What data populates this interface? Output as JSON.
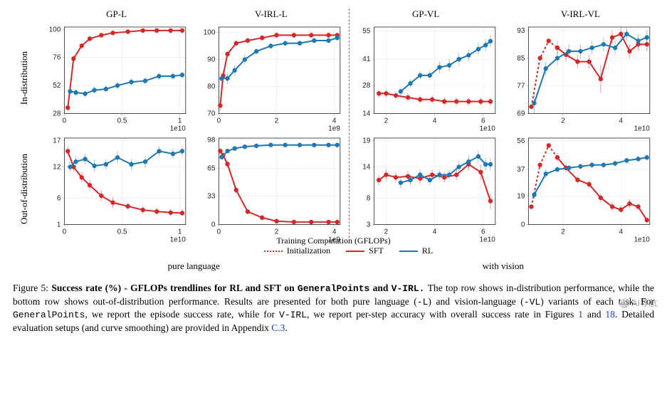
{
  "figure": {
    "number_label": "Figure 5:",
    "title_bold": "Success rate (%) - GFLOPs trendlines for RL and SFT on ",
    "title_mono1": "GeneralPoints",
    "title_mid": " and ",
    "title_mono2": "V-IRL.",
    "body_1": " The top row shows in-distribution performance, while the bottom row shows out-of-distribution performance. Results are presented for both pure language (",
    "mono_L": "-L",
    "body_2": ") and vision-language (",
    "mono_VL": "-VL",
    "body_3": ") variants of each task. For ",
    "mono_GP": "GeneralPoints",
    "body_4": ", we report the episode success rate, while for ",
    "mono_VIRL": "V-IRL",
    "body_5": ", we report per-step accuracy with overall success rate in Figures ",
    "link_1": "1",
    "body_6": " and ",
    "link_18": "18",
    "body_7": ". Detailed evaluation setups (and curve smoothing) are provided in Appendix ",
    "link_C3": "C.3",
    "body_8": "."
  },
  "layout": {
    "row_labels": [
      "In-distribution",
      "Out-of-distribution"
    ],
    "col_titles": [
      "GP-L",
      "V-IRL-L",
      "GP-VL",
      "V-IRL-VL"
    ],
    "bottom_left": "pure language",
    "bottom_right": "with vision",
    "xaxis_title": "Training Computation (GFLOPs)",
    "legend": [
      {
        "label": "Initialization",
        "color": "#d62728",
        "style": "dotted"
      },
      {
        "label": "SFT",
        "color": "#d62728",
        "style": "solid"
      },
      {
        "label": "RL",
        "color": "#1f77b4",
        "style": "solid"
      }
    ]
  },
  "style": {
    "sft_color": "#d62728",
    "rl_color": "#1f77b4",
    "init_color": "#d62728",
    "grid_color": "#e8e8e8",
    "frame_color": "#222222",
    "tick_font_size": 10,
    "line_width": 2,
    "marker_radius": 3.2,
    "background": "#ffffff"
  },
  "panels": [
    {
      "id": "gp-l-in",
      "title": "GP-L",
      "xlim": [
        0.0,
        1.05
      ],
      "xexp": "1e10",
      "xticks": [
        0.0,
        0.5,
        1.0
      ],
      "ylim": [
        28,
        102
      ],
      "yticks": [
        28,
        52,
        76,
        100
      ],
      "sft": {
        "color": "#d62728",
        "x": [
          0.03,
          0.08,
          0.15,
          0.22,
          0.32,
          0.42,
          0.55,
          0.68,
          0.8,
          0.92,
          1.02
        ],
        "y": [
          33,
          75,
          86,
          92,
          95,
          97,
          98,
          99,
          99,
          99,
          99
        ],
        "err": [
          3,
          3,
          2,
          2,
          1,
          1,
          1,
          1,
          1,
          1,
          1
        ]
      },
      "rl": {
        "color": "#1f77b4",
        "x": [
          0.05,
          0.1,
          0.18,
          0.26,
          0.36,
          0.46,
          0.58,
          0.7,
          0.82,
          0.94,
          1.02
        ],
        "y": [
          47,
          46,
          45,
          48,
          49,
          52,
          55,
          56,
          60,
          60,
          61
        ],
        "err": [
          3,
          3,
          3,
          3,
          3,
          3,
          3,
          3,
          3,
          3,
          3
        ]
      }
    },
    {
      "id": "virl-l-in",
      "title": "V-IRL-L",
      "xlim": [
        0.0,
        4.2
      ],
      "xexp": "1e9",
      "xticks": [
        0,
        2,
        4
      ],
      "ylim": [
        70,
        102
      ],
      "yticks": [
        70,
        80,
        90,
        100
      ],
      "sft": {
        "color": "#d62728",
        "x": [
          0.05,
          0.15,
          0.3,
          0.6,
          1.0,
          1.5,
          2.0,
          2.6,
          3.2,
          3.8,
          4.1
        ],
        "y": [
          73,
          84,
          92,
          96,
          97,
          98,
          99,
          99,
          99,
          99,
          99
        ],
        "err": [
          2,
          2,
          1,
          1,
          1,
          1,
          1,
          1,
          1,
          1,
          1
        ]
      },
      "rl": {
        "color": "#1f77b4",
        "x": [
          0.1,
          0.3,
          0.55,
          0.9,
          1.3,
          1.8,
          2.3,
          2.8,
          3.3,
          3.8,
          4.1
        ],
        "y": [
          83,
          83,
          86,
          90,
          93,
          95,
          96,
          96,
          97,
          97,
          98
        ],
        "err": [
          2,
          2,
          2,
          2,
          1,
          1,
          1,
          1,
          1,
          1,
          1
        ]
      }
    },
    {
      "id": "gp-vl-in",
      "title": "GP-VL",
      "xlim": [
        1.5,
        6.5
      ],
      "xexp": "1e10",
      "xticks": [
        2,
        4,
        6
      ],
      "ylim": [
        14,
        57
      ],
      "yticks": [
        14,
        28,
        41,
        55
      ],
      "sft": {
        "color": "#d62728",
        "x": [
          1.7,
          2.0,
          2.4,
          2.9,
          3.4,
          3.9,
          4.4,
          4.9,
          5.4,
          5.9,
          6.3
        ],
        "y": [
          24,
          24,
          23,
          22,
          21,
          21,
          20,
          20,
          20,
          20,
          20
        ],
        "err": [
          2,
          2,
          2,
          2,
          2,
          2,
          2,
          2,
          2,
          2,
          2
        ]
      },
      "rl": {
        "color": "#1f77b4",
        "x": [
          2.6,
          3.0,
          3.4,
          3.8,
          4.2,
          4.6,
          5.0,
          5.4,
          5.8,
          6.1,
          6.3
        ],
        "y": [
          25,
          29,
          33,
          33,
          37,
          38,
          41,
          43,
          46,
          48,
          50
        ],
        "err": [
          2,
          2,
          2,
          2,
          3,
          3,
          3,
          3,
          3,
          3,
          3
        ]
      }
    },
    {
      "id": "virl-vl-in",
      "title": "V-IRL-VL",
      "xlim": [
        0.8,
        5.0
      ],
      "xexp": "1e10",
      "xticks": [
        2,
        4
      ],
      "ylim": [
        69,
        94
      ],
      "yticks": [
        69,
        77,
        85,
        93
      ],
      "init": {
        "color": "#d62728",
        "style": "dotted",
        "x": [
          0.9,
          1.2,
          1.5,
          1.8
        ],
        "y": [
          71,
          85,
          90,
          88
        ]
      },
      "sft": {
        "color": "#d62728",
        "x": [
          1.8,
          2.1,
          2.5,
          2.9,
          3.3,
          3.7,
          4.0,
          4.3,
          4.6,
          4.9
        ],
        "y": [
          88,
          86,
          84,
          84,
          79,
          91,
          92,
          87,
          89,
          89
        ],
        "err": [
          2,
          2,
          2,
          2,
          4,
          2,
          2,
          2,
          2,
          2
        ]
      },
      "rl": {
        "color": "#1f77b4",
        "x": [
          1.0,
          1.4,
          1.8,
          2.2,
          2.6,
          3.0,
          3.4,
          3.8,
          4.2,
          4.6,
          4.9
        ],
        "y": [
          72,
          82,
          85,
          87,
          87,
          88,
          89,
          88,
          92,
          90,
          91
        ],
        "err": [
          3,
          2,
          2,
          2,
          2,
          2,
          2,
          2,
          2,
          2,
          2
        ]
      }
    },
    {
      "id": "gp-l-out",
      "title": "",
      "xlim": [
        0.0,
        1.05
      ],
      "xexp": "1e10",
      "xticks": [
        0.0,
        0.5,
        1.0
      ],
      "ylim": [
        1,
        17.5
      ],
      "yticks": [
        1,
        6,
        12,
        17
      ],
      "sft": {
        "color": "#d62728",
        "x": [
          0.03,
          0.08,
          0.15,
          0.22,
          0.32,
          0.42,
          0.55,
          0.68,
          0.8,
          0.92,
          1.02
        ],
        "y": [
          15,
          12,
          10,
          8.5,
          6.5,
          5.2,
          4.5,
          3.8,
          3.5,
          3.3,
          3.2
        ],
        "err": [
          1,
          1,
          1,
          1,
          1,
          1,
          0.7,
          0.7,
          0.7,
          0.7,
          0.7
        ]
      },
      "rl": {
        "color": "#1f77b4",
        "x": [
          0.05,
          0.1,
          0.18,
          0.26,
          0.36,
          0.46,
          0.58,
          0.7,
          0.82,
          0.94,
          1.02
        ],
        "y": [
          12,
          13,
          13.5,
          12.2,
          12.5,
          13.8,
          12.5,
          13,
          15,
          14.5,
          15
        ],
        "err": [
          1,
          1,
          1,
          1.2,
          1,
          1.2,
          1,
          1.2,
          1,
          1,
          1
        ]
      }
    },
    {
      "id": "virl-l-out",
      "title": "",
      "xlim": [
        0.0,
        4.2
      ],
      "xexp": "1e9",
      "xticks": [
        0,
        2,
        4
      ],
      "ylim": [
        0,
        100
      ],
      "yticks": [
        0,
        33,
        65,
        98
      ],
      "sft": {
        "color": "#d62728",
        "x": [
          0.05,
          0.15,
          0.3,
          0.6,
          1.0,
          1.5,
          2.0,
          2.6,
          3.2,
          3.8,
          4.1
        ],
        "y": [
          85,
          80,
          70,
          40,
          15,
          8,
          4,
          3,
          3,
          3,
          3
        ],
        "err": [
          4,
          4,
          4,
          4,
          3,
          2,
          2,
          1,
          1,
          1,
          1
        ]
      },
      "rl": {
        "color": "#1f77b4",
        "x": [
          0.1,
          0.3,
          0.55,
          0.9,
          1.3,
          1.8,
          2.3,
          2.8,
          3.3,
          3.8,
          4.1
        ],
        "y": [
          78,
          85,
          88,
          90,
          91,
          92,
          92,
          92,
          92,
          92,
          92
        ],
        "err": [
          3,
          2,
          2,
          2,
          2,
          2,
          2,
          2,
          2,
          2,
          2
        ]
      }
    },
    {
      "id": "gp-vl-out",
      "title": "",
      "xlim": [
        1.5,
        6.5
      ],
      "xexp": "1e10",
      "xticks": [
        2,
        4,
        6
      ],
      "ylim": [
        3,
        19.5
      ],
      "yticks": [
        3,
        8,
        14,
        19
      ],
      "sft": {
        "color": "#d62728",
        "x": [
          1.7,
          2.0,
          2.4,
          2.9,
          3.4,
          3.9,
          4.4,
          4.9,
          5.4,
          5.9,
          6.3
        ],
        "y": [
          11.5,
          12.5,
          12,
          12.2,
          11.8,
          12.5,
          12,
          12.5,
          14.5,
          13,
          7.5
        ],
        "err": [
          1,
          1,
          1,
          1,
          1,
          1,
          1,
          1,
          1.2,
          1.5,
          1.5
        ]
      },
      "rl": {
        "color": "#1f77b4",
        "x": [
          2.6,
          3.0,
          3.4,
          3.8,
          4.2,
          4.6,
          5.0,
          5.4,
          5.8,
          6.1,
          6.3
        ],
        "y": [
          11,
          11.5,
          12.5,
          11.5,
          12.5,
          12.5,
          14,
          15,
          16,
          14.5,
          14.5
        ],
        "err": [
          1,
          1,
          1,
          1,
          1,
          1,
          1.2,
          1.2,
          1.2,
          1.2,
          1.2
        ]
      }
    },
    {
      "id": "virl-vl-out",
      "title": "",
      "xlim": [
        0.8,
        5.0
      ],
      "xexp": "1e10",
      "xticks": [
        2,
        4
      ],
      "ylim": [
        0,
        58
      ],
      "yticks": [
        0,
        19,
        37,
        56
      ],
      "init": {
        "color": "#d62728",
        "style": "dotted",
        "x": [
          0.9,
          1.2,
          1.5,
          1.8
        ],
        "y": [
          12,
          40,
          53,
          45
        ]
      },
      "sft": {
        "color": "#d62728",
        "x": [
          1.8,
          2.1,
          2.5,
          2.9,
          3.3,
          3.7,
          4.0,
          4.3,
          4.6,
          4.9
        ],
        "y": [
          45,
          38,
          30,
          27,
          18,
          12,
          10,
          14,
          12,
          3
        ],
        "err": [
          3,
          3,
          3,
          3,
          3,
          3,
          2,
          3,
          2,
          2
        ]
      },
      "rl": {
        "color": "#1f77b4",
        "x": [
          1.0,
          1.4,
          1.8,
          2.2,
          2.6,
          3.0,
          3.4,
          3.8,
          4.2,
          4.6,
          4.9
        ],
        "y": [
          20,
          34,
          37,
          38,
          39,
          40,
          40,
          41,
          43,
          44,
          45
        ],
        "err": [
          3,
          3,
          2,
          2,
          2,
          2,
          2,
          2,
          2,
          2,
          2
        ]
      }
    }
  ],
  "watermark": {
    "text": "AI导航"
  }
}
